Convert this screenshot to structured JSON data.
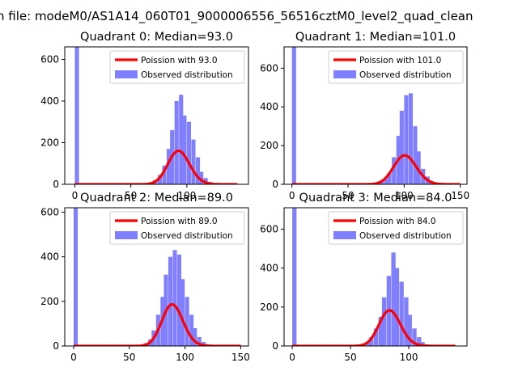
{
  "figure": {
    "suptitle": "n file: modeM0/AS1A14_060T01_9000006556_56516cztM0_level2_quad_clean"
  },
  "chart_data": [
    {
      "type": "bar",
      "title": "Quadrant 0: Median=93.0",
      "median": 93.0,
      "xlim": [
        -9,
        155
      ],
      "ylim": [
        0,
        660
      ],
      "xticks": [
        0,
        50,
        100
      ],
      "yticks": [
        0,
        200,
        400,
        600
      ],
      "histogram": {
        "name": "Observed distribution",
        "color": "#8080ff",
        "bin_width": 3.7,
        "bins": [
          [
            0,
            660
          ],
          [
            59,
            2
          ],
          [
            63,
            5
          ],
          [
            67,
            8
          ],
          [
            70,
            20
          ],
          [
            74,
            45
          ],
          [
            78,
            90
          ],
          [
            82,
            170
          ],
          [
            85,
            260
          ],
          [
            89,
            400
          ],
          [
            93,
            430
          ],
          [
            96,
            330
          ],
          [
            100,
            300
          ],
          [
            104,
            215
          ],
          [
            108,
            130
          ],
          [
            111,
            60
          ],
          [
            115,
            30
          ],
          [
            119,
            12
          ],
          [
            123,
            4
          ]
        ]
      },
      "curve": {
        "name": "Poission with 93.0",
        "color": "#ff0000",
        "mean": 93.0,
        "x_range": [
          0,
          145
        ]
      },
      "legend": {
        "position": "upper right",
        "entries": [
          "Poission with 93.0",
          "Observed distribution"
        ]
      }
    },
    {
      "type": "bar",
      "title": "Quadrant 1: Median=101.0",
      "median": 101.0,
      "xlim": [
        -7,
        156
      ],
      "ylim": [
        0,
        710
      ],
      "xticks": [
        0,
        50,
        100,
        150
      ],
      "yticks": [
        0,
        200,
        400,
        600
      ],
      "histogram": {
        "name": "Observed distribution",
        "color": "#8080ff",
        "bin_width": 3.7,
        "bins": [
          [
            0,
            710
          ],
          [
            70,
            3
          ],
          [
            74,
            8
          ],
          [
            78,
            15
          ],
          [
            82,
            30
          ],
          [
            85,
            60
          ],
          [
            89,
            140
          ],
          [
            93,
            250
          ],
          [
            96,
            380
          ],
          [
            100,
            460
          ],
          [
            104,
            470
          ],
          [
            108,
            300
          ],
          [
            111,
            170
          ],
          [
            115,
            80
          ],
          [
            119,
            40
          ],
          [
            122,
            18
          ],
          [
            126,
            8
          ]
        ]
      },
      "curve": {
        "name": "Poission with 101.0",
        "color": "#ff0000",
        "mean": 101.0,
        "x_range": [
          0,
          150
        ]
      },
      "legend": {
        "position": "upper right",
        "entries": [
          "Poission with 101.0",
          "Observed distribution"
        ]
      }
    },
    {
      "type": "bar",
      "title": "Quadrant 2: Median=89.0",
      "median": 89.0,
      "xlim": [
        -8,
        157
      ],
      "ylim": [
        0,
        620
      ],
      "xticks": [
        0,
        50,
        100,
        150
      ],
      "yticks": [
        0,
        200,
        400,
        600
      ],
      "histogram": {
        "name": "Observed distribution",
        "color": "#8080ff",
        "bin_width": 3.7,
        "bins": [
          [
            0,
            620
          ],
          [
            56,
            3
          ],
          [
            59,
            6
          ],
          [
            63,
            12
          ],
          [
            67,
            30
          ],
          [
            70,
            70
          ],
          [
            74,
            140
          ],
          [
            78,
            220
          ],
          [
            81,
            320
          ],
          [
            85,
            400
          ],
          [
            89,
            430
          ],
          [
            93,
            410
          ],
          [
            96,
            300
          ],
          [
            100,
            220
          ],
          [
            104,
            140
          ],
          [
            107,
            80
          ],
          [
            111,
            40
          ],
          [
            115,
            18
          ],
          [
            118,
            8
          ]
        ]
      },
      "curve": {
        "name": "Poission with 89.0",
        "color": "#ff0000",
        "mean": 89.0,
        "x_range": [
          0,
          150
        ]
      },
      "legend": {
        "position": "upper right",
        "entries": [
          "Poission with 89.0",
          "Observed distribution"
        ]
      }
    },
    {
      "type": "bar",
      "title": "Quadrant 3: Median=84.0",
      "median": 84.0,
      "xlim": [
        -7,
        150
      ],
      "ylim": [
        0,
        710
      ],
      "xticks": [
        0,
        50,
        100
      ],
      "yticks": [
        0,
        200,
        400,
        600
      ],
      "histogram": {
        "name": "Observed distribution",
        "color": "#8080ff",
        "bin_width": 3.7,
        "bins": [
          [
            0,
            710
          ],
          [
            55,
            4
          ],
          [
            59,
            10
          ],
          [
            63,
            20
          ],
          [
            66,
            45
          ],
          [
            70,
            90
          ],
          [
            74,
            150
          ],
          [
            77,
            250
          ],
          [
            81,
            360
          ],
          [
            85,
            480
          ],
          [
            88,
            400
          ],
          [
            92,
            330
          ],
          [
            96,
            250
          ],
          [
            99,
            160
          ],
          [
            103,
            90
          ],
          [
            107,
            45
          ],
          [
            110,
            20
          ],
          [
            114,
            8
          ]
        ]
      },
      "curve": {
        "name": "Poission with 84.0",
        "color": "#ff0000",
        "mean": 84.0,
        "x_range": [
          0,
          140
        ]
      },
      "legend": {
        "position": "upper right",
        "entries": [
          "Poission with 84.0",
          "Observed distribution"
        ]
      }
    }
  ]
}
